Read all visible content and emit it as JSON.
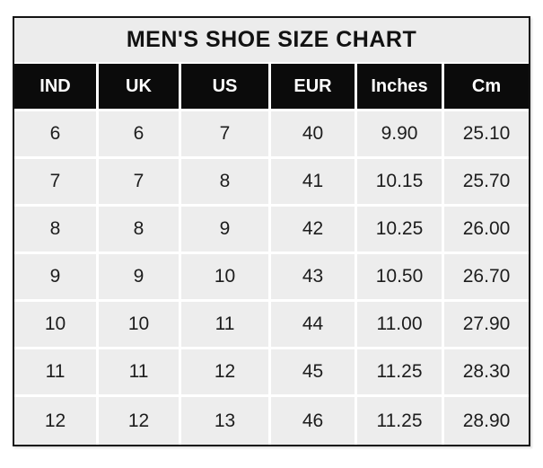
{
  "chart_data": {
    "type": "table",
    "title": "MEN'S SHOE SIZE CHART",
    "categories": [
      "IND",
      "UK",
      "US",
      "EUR",
      "Inches",
      "Cm"
    ],
    "rows": [
      [
        "6",
        "6",
        "7",
        "40",
        "9.90",
        "25.10"
      ],
      [
        "7",
        "7",
        "8",
        "41",
        "10.15",
        "25.70"
      ],
      [
        "8",
        "8",
        "9",
        "42",
        "10.25",
        "26.00"
      ],
      [
        "9",
        "9",
        "10",
        "43",
        "10.50",
        "26.70"
      ],
      [
        "10",
        "10",
        "11",
        "44",
        "11.00",
        "27.90"
      ],
      [
        "11",
        "11",
        "12",
        "45",
        "11.25",
        "28.30"
      ],
      [
        "12",
        "12",
        "13",
        "46",
        "11.25",
        "28.90"
      ]
    ],
    "layout": "single full-width title row above 6-column header row and 7 data rows, all cells center-aligned"
  },
  "colors": {
    "page_background": "#ffffff",
    "title_background": "#ececec",
    "header_background": "#0b0b0b",
    "header_text": "#ffffff",
    "cell_background": "#ededed",
    "cell_text": "#1d1d1d",
    "grid_line": "#ffffff",
    "outer_border": "#141414"
  }
}
